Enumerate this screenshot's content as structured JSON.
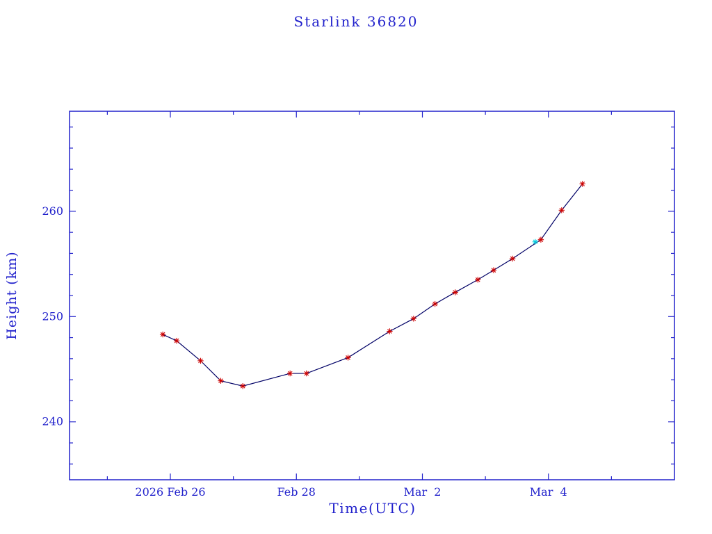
{
  "page": {
    "background_color": "#ffffff"
  },
  "chart_data": {
    "type": "line",
    "title": "Starlink 36820",
    "xlabel": "Time(UTC)",
    "ylabel": "Height (km)",
    "grid": false,
    "x_axis": {
      "lim": [
        -1.6,
        8.0
      ],
      "unit": "days relative to the 2026 Feb 26 tick",
      "major_ticks": [
        {
          "value": 0,
          "label": "2026 Feb 26"
        },
        {
          "value": 2,
          "label": "Feb 28"
        },
        {
          "value": 4,
          "label": "Mar  2"
        },
        {
          "value": 6,
          "label": "Mar  4"
        }
      ],
      "minor_tick_step": 1
    },
    "y_axis": {
      "lim": [
        234.5,
        269.5
      ],
      "major_ticks": [
        {
          "value": 240,
          "label": "240"
        },
        {
          "value": 250,
          "label": "250"
        },
        {
          "value": 260,
          "label": "260"
        }
      ],
      "minor_tick_step": 2
    },
    "series": [
      {
        "name": "height-km",
        "marker": "asterisk",
        "points": [
          [
            -0.12,
            248.3
          ],
          [
            0.1,
            247.7
          ],
          [
            0.48,
            245.8
          ],
          [
            0.8,
            243.9
          ],
          [
            1.15,
            243.4
          ],
          [
            1.9,
            244.6
          ],
          [
            2.16,
            244.6
          ],
          [
            2.82,
            246.1
          ],
          [
            3.48,
            248.6
          ],
          [
            3.86,
            249.8
          ],
          [
            4.2,
            251.2
          ],
          [
            4.52,
            252.3
          ],
          [
            4.88,
            253.5
          ],
          [
            5.13,
            254.4
          ],
          [
            5.43,
            255.5
          ],
          [
            5.88,
            257.3
          ],
          [
            6.21,
            260.1
          ],
          [
            6.54,
            262.6
          ]
        ]
      }
    ],
    "highlight_point": {
      "x": 5.79,
      "y": 257.1
    },
    "colors": {
      "frame": "#2222cc",
      "text": "#2222cc",
      "line": "#000066",
      "marker": "#cc0000",
      "highlight": "#00ccdd",
      "background": "#ffffff"
    }
  }
}
